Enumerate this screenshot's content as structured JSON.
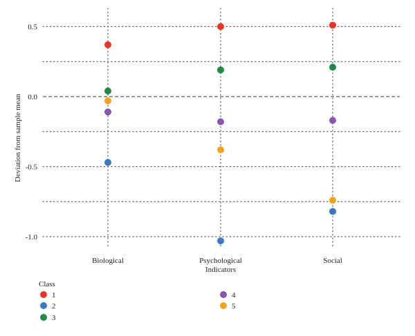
{
  "chart_data": {
    "type": "scatter",
    "title": "",
    "xlabel": "",
    "ylabel": "Deviation from sample mean",
    "categories": [
      "Biological",
      "Psychological\nIndicators",
      "Social"
    ],
    "ylim": [
      -1.1,
      0.6
    ],
    "yticks": [
      0.5,
      0.0,
      -0.5,
      -1.0
    ],
    "ytick_labels": [
      "0.5",
      "0.0",
      "-0.5",
      "-1.0"
    ],
    "reference_line": 0.0,
    "grid": true,
    "legend_title": "Class",
    "legend_position": "bottom-left",
    "series": [
      {
        "name": "1",
        "color": "#e8352a",
        "values": [
          0.37,
          0.5,
          0.51
        ]
      },
      {
        "name": "2",
        "color": "#3a78c4",
        "values": [
          -0.47,
          -1.03,
          -0.82
        ]
      },
      {
        "name": "3",
        "color": "#23894a",
        "values": [
          0.04,
          0.19,
          0.21
        ]
      },
      {
        "name": "4",
        "color": "#8b55b0",
        "values": [
          -0.11,
          -0.18,
          -0.17
        ]
      },
      {
        "name": "5",
        "color": "#f4a21e",
        "values": [
          -0.03,
          -0.38,
          -0.74
        ]
      }
    ]
  }
}
